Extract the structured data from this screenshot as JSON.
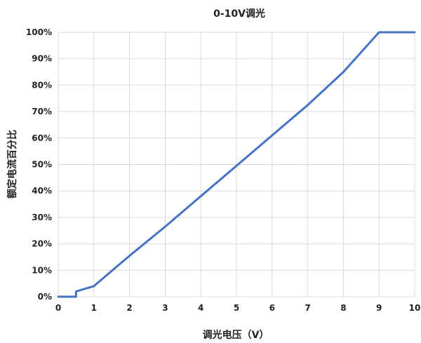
{
  "chart_data": {
    "type": "line",
    "title": "0-10V调光",
    "xlabel": "调光电压（V）",
    "ylabel": "额定电流百分比",
    "xlim": [
      0,
      10
    ],
    "ylim": [
      0,
      100
    ],
    "x_ticks": [
      "0",
      "1",
      "2",
      "3",
      "4",
      "5",
      "6",
      "7",
      "8",
      "9",
      "10"
    ],
    "y_ticks": [
      "0%",
      "10%",
      "20%",
      "30%",
      "40%",
      "50%",
      "60%",
      "70%",
      "80%",
      "90%",
      "100%"
    ],
    "grid": true,
    "legend": "none",
    "series": [
      {
        "color": "#4472C4",
        "x": [
          0,
          0.5,
          0.5,
          1,
          2,
          3,
          4,
          5,
          6,
          7,
          8,
          9,
          10
        ],
        "y": [
          0,
          0,
          2,
          4,
          15.5,
          26.5,
          38,
          49.5,
          61,
          72.5,
          85,
          100,
          100
        ]
      }
    ]
  }
}
